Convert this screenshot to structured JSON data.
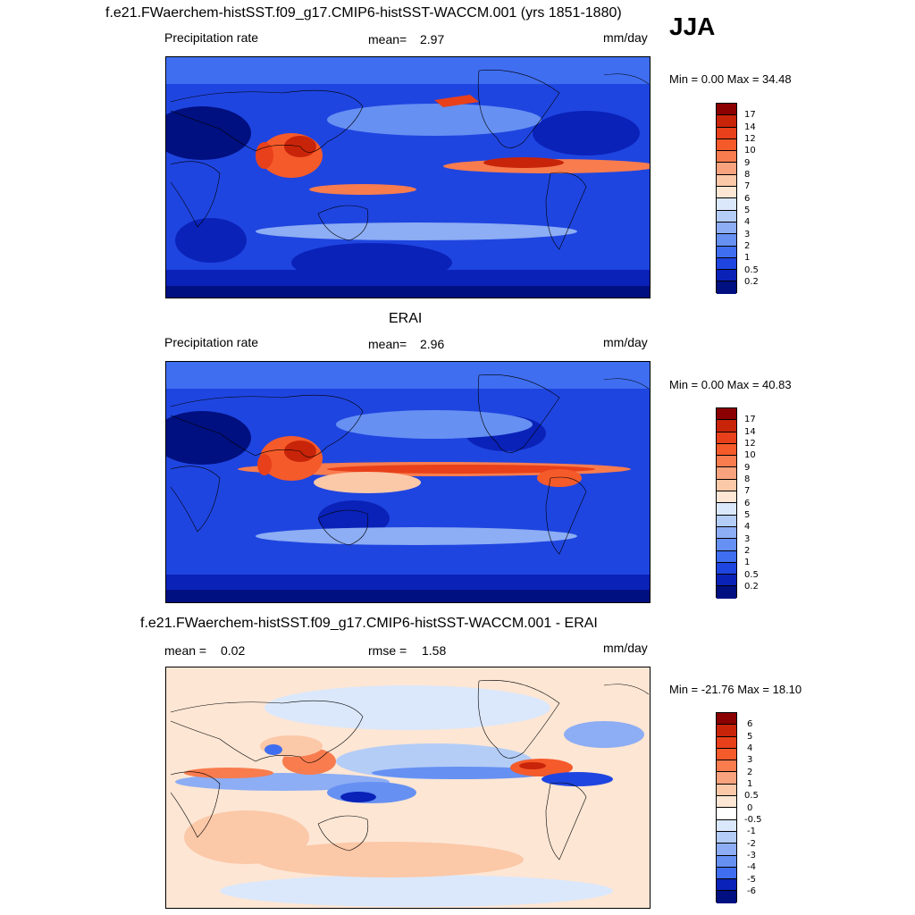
{
  "figure": {
    "title": "f.e21.FWaerchem-histSST.f09_g17.CMIP6-histSST-WACCM.001 (yrs 1851-1880)",
    "season": "JJA"
  },
  "panels": [
    {
      "variable": "Precipitation rate",
      "stat1_label": "mean=",
      "stat1_value": "2.97",
      "units": "mm/day",
      "minmax": "Min =   0.00 Max =  34.48",
      "levels": [
        "17",
        "14",
        "12",
        "10",
        "9",
        "8",
        "7",
        "6",
        "5",
        "4",
        "3",
        "2",
        "1",
        "0.5",
        "0.2"
      ],
      "colors": [
        "#8b0000",
        "#c8240a",
        "#e8401a",
        "#f55a2a",
        "#f87c4e",
        "#f9a37e",
        "#fbc8a8",
        "#fde6d4",
        "#dbe8fb",
        "#b4cdf7",
        "#8dadf4",
        "#6690f2",
        "#3f6ef0",
        "#1f45e0",
        "#0a22b8",
        "#001080"
      ]
    },
    {
      "title": "ERAI",
      "variable": "Precipitation rate",
      "stat1_label": "mean=",
      "stat1_value": "2.96",
      "units": "mm/day",
      "minmax": "Min =   0.00 Max =  40.83",
      "levels": [
        "17",
        "14",
        "12",
        "10",
        "9",
        "8",
        "7",
        "6",
        "5",
        "4",
        "3",
        "2",
        "1",
        "0.5",
        "0.2"
      ],
      "colors": [
        "#8b0000",
        "#c8240a",
        "#e8401a",
        "#f55a2a",
        "#f87c4e",
        "#f9a37e",
        "#fbc8a8",
        "#fde6d4",
        "#dbe8fb",
        "#b4cdf7",
        "#8dadf4",
        "#6690f2",
        "#3f6ef0",
        "#1f45e0",
        "#0a22b8",
        "#001080"
      ]
    },
    {
      "title": "f.e21.FWaerchem-histSST.f09_g17.CMIP6-histSST-WACCM.001 - ERAI",
      "stat1_label": "mean =",
      "stat1_value": "0.02",
      "stat2_label": "rmse =",
      "stat2_value": "1.58",
      "units": "mm/day",
      "minmax": "Min = -21.76 Max =  18.10",
      "levels": [
        "6",
        "5",
        "4",
        "3",
        "2",
        "1",
        "0.5",
        "0",
        "-0.5",
        "-1",
        "-2",
        "-3",
        "-4",
        "-5",
        "-6"
      ],
      "colors": [
        "#8b0000",
        "#c8240a",
        "#e8401a",
        "#f55a2a",
        "#f87c4e",
        "#f9a37e",
        "#fbc8a8",
        "#fde6d4",
        "#ffffff",
        "#dbe8fb",
        "#b4cdf7",
        "#8dadf4",
        "#6690f2",
        "#3f6ef0",
        "#0a22b8",
        "#001080"
      ]
    }
  ]
}
